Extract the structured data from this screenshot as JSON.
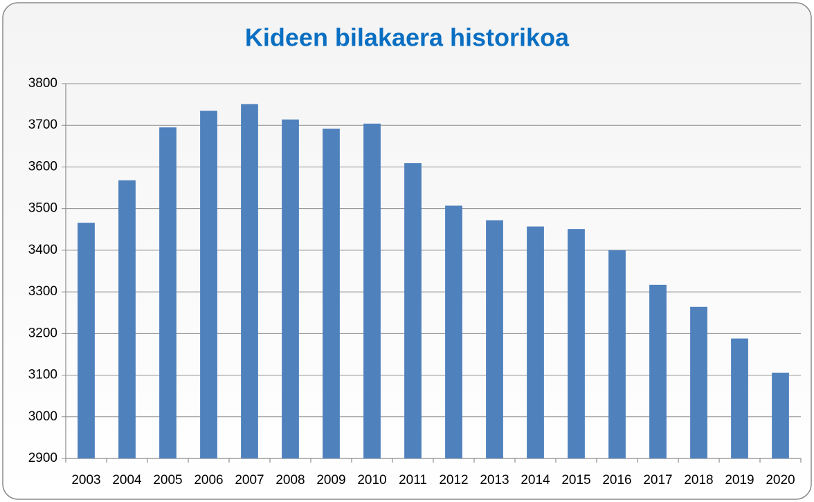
{
  "chart_data": {
    "type": "bar",
    "title": "Kideen bilakaera historikoa",
    "categories": [
      "2003",
      "2004",
      "2005",
      "2006",
      "2007",
      "2008",
      "2009",
      "2010",
      "2011",
      "2012",
      "2013",
      "2014",
      "2015",
      "2016",
      "2017",
      "2018",
      "2019",
      "2020"
    ],
    "values": [
      3466,
      3568,
      3695,
      3735,
      3751,
      3714,
      3692,
      3704,
      3609,
      3507,
      3472,
      3457,
      3451,
      3400,
      3317,
      3264,
      3188,
      3106
    ],
    "color": "#4f81bd",
    "ylim": [
      2900,
      3800
    ],
    "yticks": [
      2900,
      3000,
      3100,
      3200,
      3300,
      3400,
      3500,
      3600,
      3700,
      3800
    ],
    "grid": true
  }
}
